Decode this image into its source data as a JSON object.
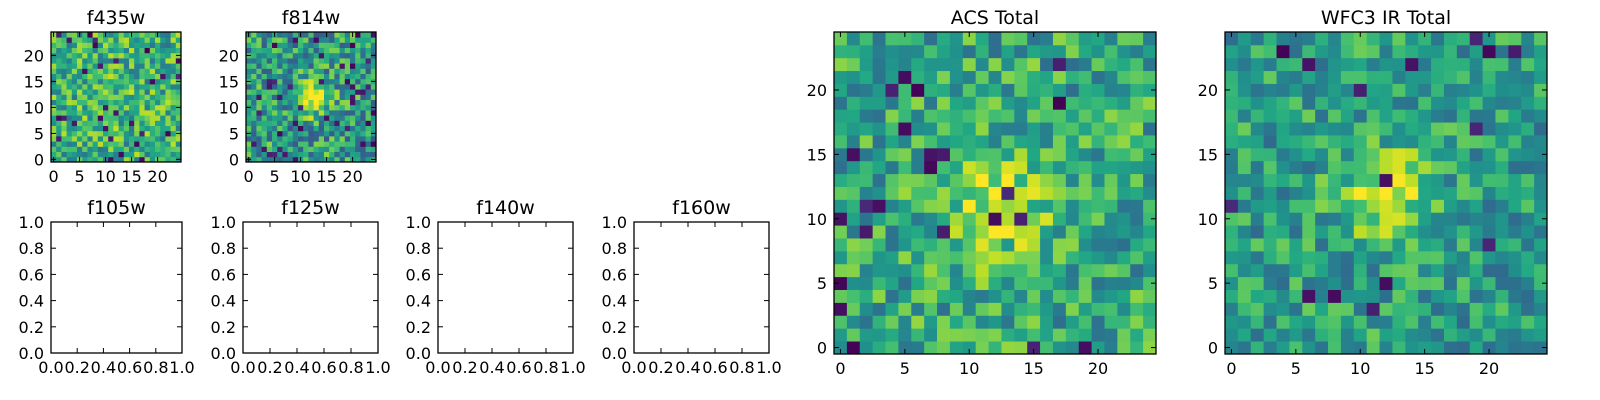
{
  "colormap": "viridis",
  "chart_data": [
    {
      "type": "heatmap",
      "title": "f435w",
      "has_image": true,
      "size": 25,
      "xlim": [
        -0.5,
        24.5
      ],
      "ylim": [
        -0.5,
        24.5
      ],
      "xticks": [
        0,
        5,
        10,
        15,
        20
      ],
      "yticks": [
        0,
        5,
        10,
        15,
        20
      ],
      "xticklabels": [
        "0",
        "5",
        "10",
        "15",
        "20"
      ],
      "yticklabels": [
        "0",
        "5",
        "10",
        "15",
        "20"
      ],
      "seed": 11,
      "base": 0.64,
      "noise": 0.26,
      "blob": {
        "x": 12,
        "y": 11,
        "amp": 0.05,
        "r": 3
      },
      "dark_frac": 0.04
    },
    {
      "type": "heatmap",
      "title": "f814w",
      "has_image": true,
      "size": 25,
      "xlim": [
        -0.5,
        24.5
      ],
      "ylim": [
        -0.5,
        24.5
      ],
      "xticks": [
        0,
        5,
        10,
        15,
        20
      ],
      "yticks": [
        0,
        5,
        10,
        15,
        20
      ],
      "xticklabels": [
        "0",
        "5",
        "10",
        "15",
        "20"
      ],
      "yticklabels": [
        "0",
        "5",
        "10",
        "15",
        "20"
      ],
      "seed": 23,
      "base": 0.55,
      "noise": 0.28,
      "blob": {
        "x": 12,
        "y": 12,
        "amp": 0.55,
        "r": 2.2
      },
      "dark_frac": 0.06
    },
    {
      "type": "heatmap",
      "title": "f105w",
      "has_image": false,
      "xlim": [
        0,
        1
      ],
      "ylim": [
        0,
        1
      ],
      "xticks": [
        0,
        0.2,
        0.4,
        0.6,
        0.8,
        1.0
      ],
      "yticks": [
        0,
        0.2,
        0.4,
        0.6,
        0.8,
        1.0
      ],
      "xticklabels": [
        "0.0",
        "0.2",
        "0.4",
        "0.6",
        "0.8",
        "1.0"
      ],
      "yticklabels": [
        "0.0",
        "0.2",
        "0.4",
        "0.6",
        "0.8",
        "1.0"
      ]
    },
    {
      "type": "heatmap",
      "title": "f125w",
      "has_image": false,
      "xlim": [
        0,
        1
      ],
      "ylim": [
        0,
        1
      ],
      "xticks": [
        0,
        0.2,
        0.4,
        0.6,
        0.8,
        1.0
      ],
      "yticks": [
        0,
        0.2,
        0.4,
        0.6,
        0.8,
        1.0
      ],
      "xticklabels": [
        "0.0",
        "0.2",
        "0.4",
        "0.6",
        "0.8",
        "1.0"
      ],
      "yticklabels": [
        "0.0",
        "0.2",
        "0.4",
        "0.6",
        "0.8",
        "1.0"
      ]
    },
    {
      "type": "heatmap",
      "title": "f140w",
      "has_image": false,
      "xlim": [
        0,
        1
      ],
      "ylim": [
        0,
        1
      ],
      "xticks": [
        0,
        0.2,
        0.4,
        0.6,
        0.8,
        1.0
      ],
      "yticks": [
        0,
        0.2,
        0.4,
        0.6,
        0.8,
        1.0
      ],
      "xticklabels": [
        "0.0",
        "0.2",
        "0.4",
        "0.6",
        "0.8",
        "1.0"
      ],
      "yticklabels": [
        "0.0",
        "0.2",
        "0.4",
        "0.6",
        "0.8",
        "1.0"
      ]
    },
    {
      "type": "heatmap",
      "title": "f160w",
      "has_image": false,
      "xlim": [
        0,
        1
      ],
      "ylim": [
        0,
        1
      ],
      "xticks": [
        0,
        0.2,
        0.4,
        0.6,
        0.8,
        1.0
      ],
      "yticks": [
        0,
        0.2,
        0.4,
        0.6,
        0.8,
        1.0
      ],
      "xticklabels": [
        "0.0",
        "0.2",
        "0.4",
        "0.6",
        "0.8",
        "1.0"
      ],
      "yticklabels": [
        "0.0",
        "0.2",
        "0.4",
        "0.6",
        "0.8",
        "1.0"
      ]
    },
    {
      "type": "heatmap",
      "title": "ACS Total",
      "has_image": true,
      "size": 25,
      "xlim": [
        -0.5,
        24.5
      ],
      "ylim": [
        -0.5,
        24.5
      ],
      "xticks": [
        0,
        5,
        10,
        15,
        20
      ],
      "yticks": [
        0,
        5,
        10,
        15,
        20
      ],
      "xticklabels": [
        "0",
        "5",
        "10",
        "15",
        "20"
      ],
      "yticklabels": [
        "0",
        "5",
        "10",
        "15",
        "20"
      ],
      "seed": 37,
      "base": 0.6,
      "noise": 0.24,
      "blob": {
        "x": 12,
        "y": 11,
        "amp": 0.32,
        "r": 2.8
      },
      "dark_frac": 0.045
    },
    {
      "type": "heatmap",
      "title": "WFC3 IR Total",
      "has_image": true,
      "size": 25,
      "xlim": [
        -0.5,
        24.5
      ],
      "ylim": [
        -0.5,
        24.5
      ],
      "xticks": [
        0,
        5,
        10,
        15,
        20
      ],
      "yticks": [
        0,
        5,
        10,
        15,
        20
      ],
      "xticklabels": [
        "0",
        "5",
        "10",
        "15",
        "20"
      ],
      "yticklabels": [
        "0",
        "5",
        "10",
        "15",
        "20"
      ],
      "seed": 53,
      "base": 0.56,
      "noise": 0.22,
      "blob": {
        "x": 12,
        "y": 12,
        "amp": 0.4,
        "r": 2.4
      },
      "dark_frac": 0.03
    }
  ]
}
